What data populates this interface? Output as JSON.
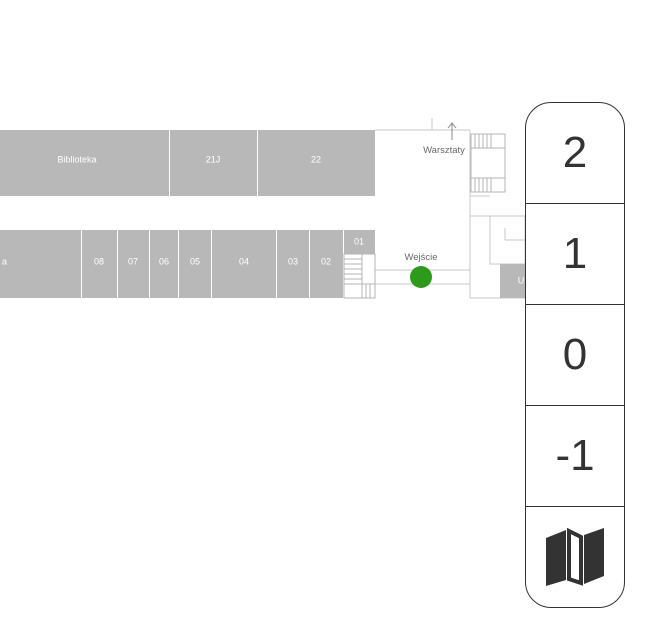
{
  "map": {
    "rooms_top": {
      "biblioteka": "Biblioteka",
      "r21j": "21J",
      "r22": "22"
    },
    "rooms_bottom": {
      "partial": "a",
      "r08": "08",
      "r07": "07",
      "r06": "06",
      "r05": "05",
      "r04": "04",
      "r03": "03",
      "r02": "02",
      "r01": "01",
      "partial_right": "U"
    },
    "labels": {
      "workshops": "Warsztaty",
      "entrance": "Wejście"
    },
    "colors": {
      "room": "#b8b8b8",
      "entrance_marker": "#2e9a1b",
      "outline": "#c9c9c9"
    }
  },
  "floor_selector": {
    "floors": [
      "2",
      "1",
      "0",
      "-1"
    ],
    "map_button_icon": "map-icon"
  }
}
